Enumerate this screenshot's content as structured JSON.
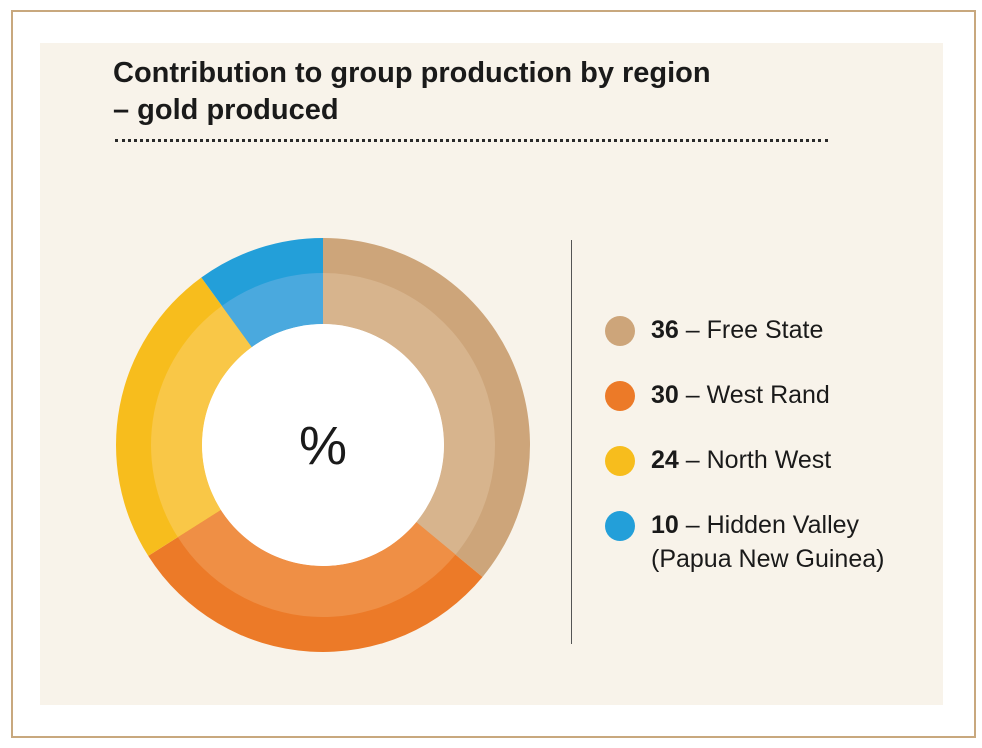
{
  "chart_data": {
    "type": "pie",
    "title": "Contribution to group production by region – gold produced",
    "title_lines": [
      "Contribution to group production by region",
      "– gold produced"
    ],
    "center_label": "%",
    "unit": "%",
    "series": [
      {
        "name": "Free State",
        "value": 36,
        "color": "#cda57a",
        "inner_color": "#d7b48d"
      },
      {
        "name": "West Rand",
        "value": 30,
        "color": "#ec7a28",
        "inner_color": "#ef8f45"
      },
      {
        "name": "North West",
        "value": 24,
        "color": "#f7bd1d",
        "inner_color": "#f9c747"
      },
      {
        "name": "Hidden Valley",
        "sub_name": "(Papua New Guinea)",
        "value": 10,
        "color": "#239fd9",
        "inner_color": "#4aa9de"
      }
    ]
  },
  "legend": {
    "separator": "–",
    "items": [
      {
        "value": "36",
        "label": "Free State",
        "sub_label": ""
      },
      {
        "value": "30",
        "label": "West Rand",
        "sub_label": ""
      },
      {
        "value": "24",
        "label": "North West",
        "sub_label": ""
      },
      {
        "value": "10",
        "label": "Hidden Valley",
        "sub_label": "(Papua New Guinea)"
      }
    ]
  }
}
